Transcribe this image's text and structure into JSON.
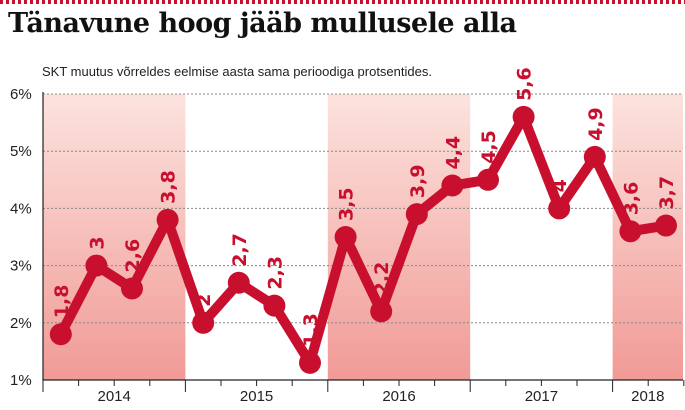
{
  "header": {
    "title": "Tänavune hoog jääb mullusele alla",
    "subtitle": "SKT muutus võrreldes eelmise aasta sama perioodiga protsentides."
  },
  "colors": {
    "accent": "#c8102e",
    "band_top": "#fce3de",
    "band_bottom": "#f19a96",
    "grid": "#888888"
  },
  "chart_data": {
    "type": "line",
    "title": "Tänavune hoog jääb mullusele alla",
    "subtitle": "SKT muutus võrreldes eelmise aasta sama perioodiga protsentides.",
    "xlabel": "",
    "ylabel": "",
    "ylim": [
      1,
      6
    ],
    "yticks": [
      "1%",
      "2%",
      "3%",
      "4%",
      "5%",
      "6%"
    ],
    "grid": true,
    "years": [
      "2014",
      "2015",
      "2016",
      "2017",
      "2018"
    ],
    "shaded_years": [
      "2014",
      "2016",
      "2018"
    ],
    "x": [
      "2014 Q1",
      "2014 Q2",
      "2014 Q3",
      "2014 Q4",
      "2015 Q1",
      "2015 Q2",
      "2015 Q3",
      "2015 Q4",
      "2016 Q1",
      "2016 Q2",
      "2016 Q3",
      "2016 Q4",
      "2017 Q1",
      "2017 Q2",
      "2017 Q3",
      "2017 Q4",
      "2018 Q1",
      "2018 Q2"
    ],
    "values": [
      1.8,
      3,
      2.6,
      3.8,
      2,
      2.7,
      2.3,
      1.3,
      3.5,
      2.2,
      3.9,
      4.4,
      4.5,
      5.6,
      4,
      4.9,
      3.6,
      3.7
    ],
    "labels": [
      "1,8",
      "3",
      "2,6",
      "3,8",
      "2",
      "2,7",
      "2,3",
      "1,3",
      "3,5",
      "2,2",
      "3,9",
      "4,4",
      "4,5",
      "5,6",
      "4",
      "4,9",
      "3,6",
      "3,7"
    ]
  }
}
